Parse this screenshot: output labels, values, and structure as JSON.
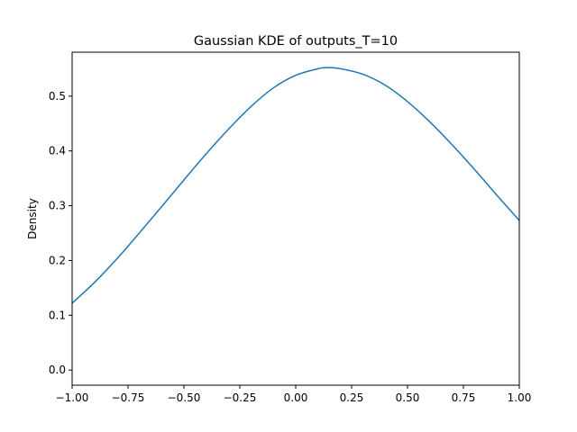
{
  "chart_data": {
    "type": "line",
    "title": "Gaussian KDE of outputs_T=10",
    "xlabel": "",
    "ylabel": "Density",
    "xlim": [
      -1.0,
      1.0
    ],
    "ylim": [
      -0.0276,
      0.5802
    ],
    "xticks": [
      -1.0,
      -0.75,
      -0.5,
      -0.25,
      0.0,
      0.25,
      0.5,
      0.75,
      1.0
    ],
    "xtick_labels": [
      "−1.00",
      "−0.75",
      "−0.50",
      "−0.25",
      "0.00",
      "0.25",
      "0.50",
      "0.75",
      "1.00"
    ],
    "yticks": [
      0.0,
      0.1,
      0.2,
      0.3,
      0.4,
      0.5
    ],
    "ytick_labels": [
      "0.0",
      "0.1",
      "0.2",
      "0.3",
      "0.4",
      "0.5"
    ],
    "grid": false,
    "line_color": "#1f77b4",
    "series": [
      {
        "x": [
          -1.0,
          -0.9,
          -0.8,
          -0.7,
          -0.6,
          -0.5,
          -0.4,
          -0.3,
          -0.2,
          -0.1,
          0.0,
          0.1,
          0.14,
          0.2,
          0.3,
          0.4,
          0.5,
          0.6,
          0.7,
          0.8,
          0.9,
          1.0
        ],
        "values": [
          0.122,
          0.16,
          0.203,
          0.25,
          0.298,
          0.347,
          0.395,
          0.44,
          0.481,
          0.515,
          0.538,
          0.55,
          0.552,
          0.55,
          0.54,
          0.52,
          0.49,
          0.453,
          0.411,
          0.366,
          0.319,
          0.273
        ]
      }
    ]
  }
}
